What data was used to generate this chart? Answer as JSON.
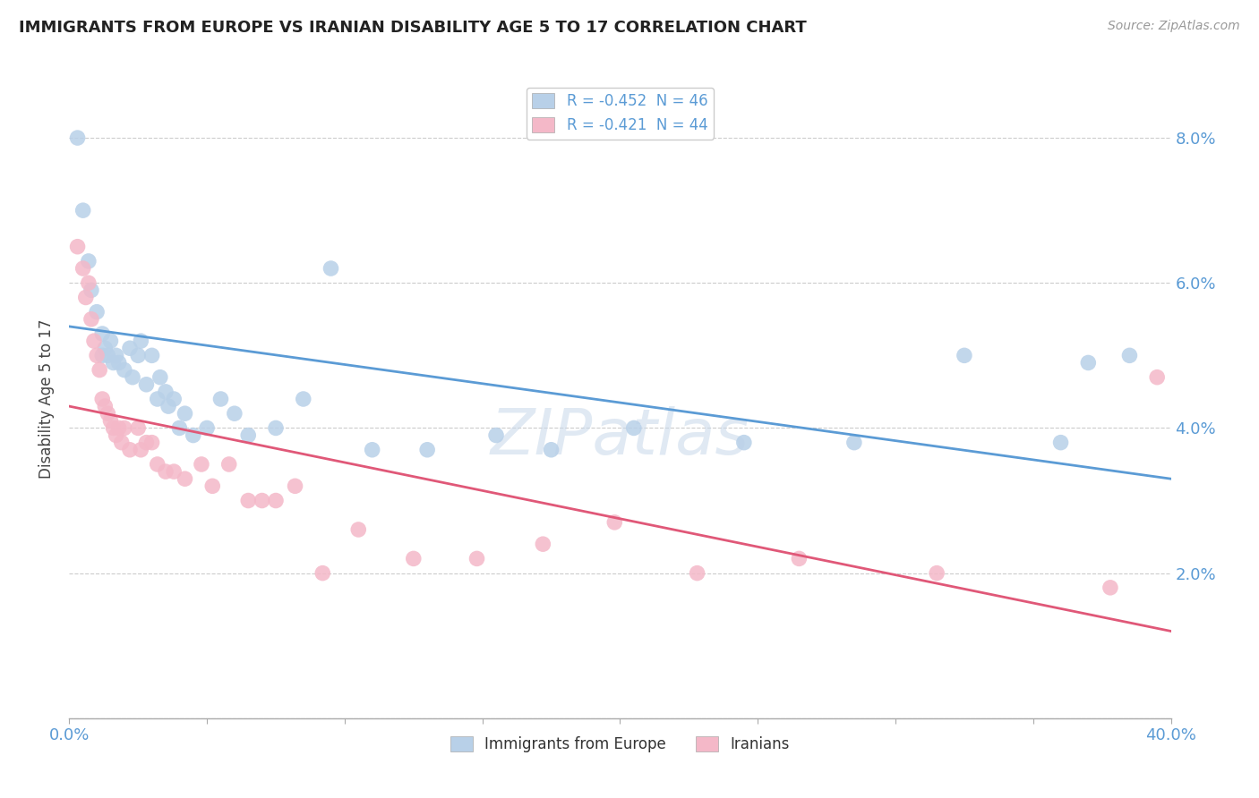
{
  "title": "IMMIGRANTS FROM EUROPE VS IRANIAN DISABILITY AGE 5 TO 17 CORRELATION CHART",
  "source": "Source: ZipAtlas.com",
  "ylabel": "Disability Age 5 to 17",
  "xlim": [
    0.0,
    0.4
  ],
  "ylim": [
    0.0,
    0.088
  ],
  "xticks": [
    0.0,
    0.05,
    0.1,
    0.15,
    0.2,
    0.25,
    0.3,
    0.35,
    0.4
  ],
  "yticks": [
    0.0,
    0.02,
    0.04,
    0.06,
    0.08
  ],
  "ytick_labels_right": [
    "",
    "2.0%",
    "4.0%",
    "6.0%",
    "8.0%"
  ],
  "xtick_labels": [
    "0.0%",
    "",
    "",
    "",
    "",
    "",
    "",
    "",
    "40.0%"
  ],
  "legend_entries": [
    {
      "label": "R = -0.452  N = 46",
      "color": "#b8d0e8"
    },
    {
      "label": "R = -0.421  N = 44",
      "color": "#f4b8c8"
    }
  ],
  "watermark": "ZIPatlas",
  "background_color": "#ffffff",
  "grid_color": "#cccccc",
  "title_color": "#222222",
  "axis_label_color": "#5b9bd5",
  "blue_scatter_color": "#b8d0e8",
  "pink_scatter_color": "#f4b8c8",
  "blue_line_color": "#5b9bd5",
  "pink_line_color": "#e05878",
  "blue_points_x": [
    0.003,
    0.005,
    0.007,
    0.008,
    0.01,
    0.012,
    0.012,
    0.013,
    0.014,
    0.015,
    0.016,
    0.017,
    0.018,
    0.02,
    0.022,
    0.023,
    0.025,
    0.026,
    0.028,
    0.03,
    0.032,
    0.033,
    0.035,
    0.036,
    0.038,
    0.04,
    0.042,
    0.045,
    0.05,
    0.055,
    0.06,
    0.065,
    0.075,
    0.085,
    0.095,
    0.11,
    0.13,
    0.155,
    0.175,
    0.205,
    0.245,
    0.285,
    0.325,
    0.36,
    0.37,
    0.385
  ],
  "blue_points_y": [
    0.08,
    0.07,
    0.063,
    0.059,
    0.056,
    0.053,
    0.05,
    0.051,
    0.05,
    0.052,
    0.049,
    0.05,
    0.049,
    0.048,
    0.051,
    0.047,
    0.05,
    0.052,
    0.046,
    0.05,
    0.044,
    0.047,
    0.045,
    0.043,
    0.044,
    0.04,
    0.042,
    0.039,
    0.04,
    0.044,
    0.042,
    0.039,
    0.04,
    0.044,
    0.062,
    0.037,
    0.037,
    0.039,
    0.037,
    0.04,
    0.038,
    0.038,
    0.05,
    0.038,
    0.049,
    0.05
  ],
  "pink_points_x": [
    0.003,
    0.005,
    0.006,
    0.007,
    0.008,
    0.009,
    0.01,
    0.011,
    0.012,
    0.013,
    0.014,
    0.015,
    0.016,
    0.017,
    0.018,
    0.019,
    0.02,
    0.022,
    0.025,
    0.026,
    0.028,
    0.03,
    0.032,
    0.035,
    0.038,
    0.042,
    0.048,
    0.052,
    0.058,
    0.065,
    0.07,
    0.075,
    0.082,
    0.092,
    0.105,
    0.125,
    0.148,
    0.172,
    0.198,
    0.228,
    0.265,
    0.315,
    0.378,
    0.395
  ],
  "pink_points_y": [
    0.065,
    0.062,
    0.058,
    0.06,
    0.055,
    0.052,
    0.05,
    0.048,
    0.044,
    0.043,
    0.042,
    0.041,
    0.04,
    0.039,
    0.04,
    0.038,
    0.04,
    0.037,
    0.04,
    0.037,
    0.038,
    0.038,
    0.035,
    0.034,
    0.034,
    0.033,
    0.035,
    0.032,
    0.035,
    0.03,
    0.03,
    0.03,
    0.032,
    0.02,
    0.026,
    0.022,
    0.022,
    0.024,
    0.027,
    0.02,
    0.022,
    0.02,
    0.018,
    0.047
  ],
  "blue_trendline_x": [
    0.0,
    0.4
  ],
  "blue_trendline_y": [
    0.054,
    0.033
  ],
  "pink_trendline_x": [
    0.0,
    0.4
  ],
  "pink_trendline_y": [
    0.043,
    0.012
  ],
  "bottom_legend": [
    {
      "label": "Immigrants from Europe",
      "color": "#b8d0e8"
    },
    {
      "label": "Iranians",
      "color": "#f4b8c8"
    }
  ]
}
